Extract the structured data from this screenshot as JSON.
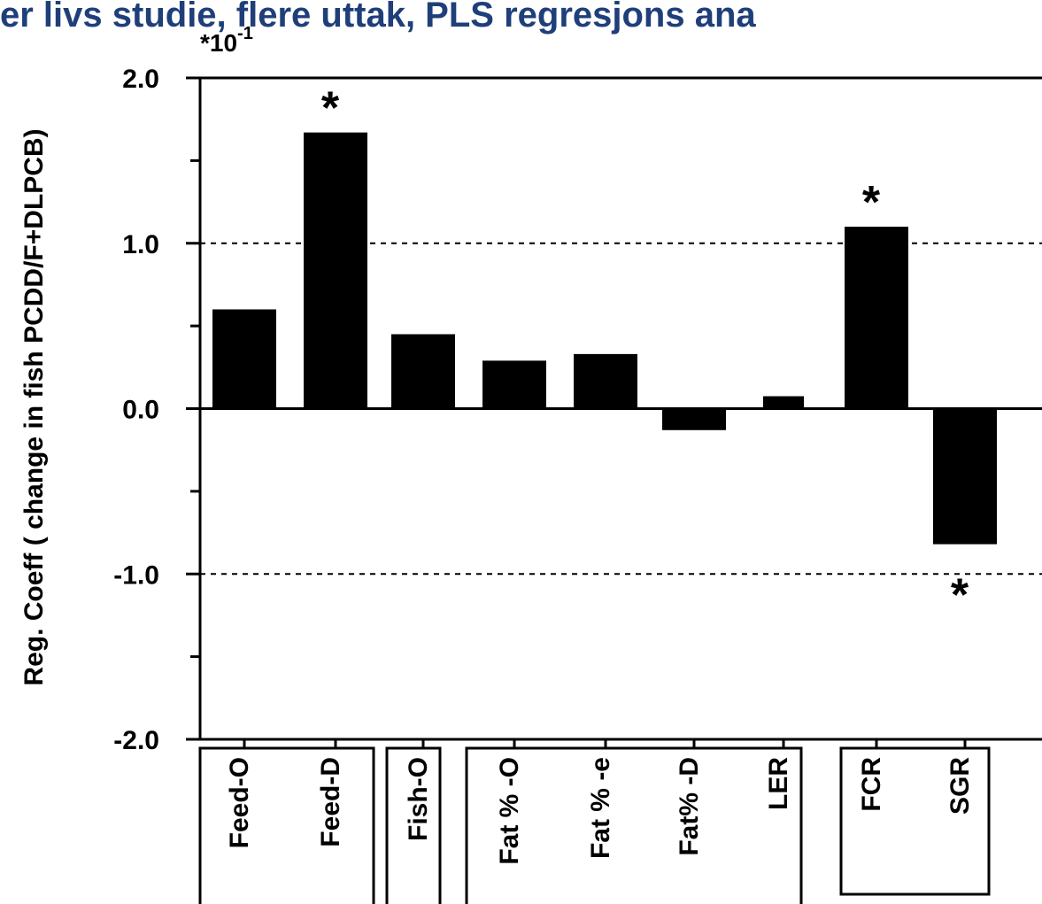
{
  "chart_data": {
    "type": "bar",
    "title": "er livs studie, flere uttak, PLS regresjons ana",
    "scale_label": "*10",
    "scale_exponent": "-1",
    "y_label": "Reg. Coeff ( change in fish PCDD/F+DLPCB)",
    "categories": [
      "Feed-O",
      "Feed-D",
      "Fish-O",
      "Fat % -O",
      "Fat % -e",
      "Fat% -D",
      "LER",
      "FCR",
      "SGR"
    ],
    "values": [
      0.6,
      1.67,
      0.45,
      0.29,
      0.33,
      -0.13,
      0.075,
      1.1,
      -0.82
    ],
    "markers": [
      null,
      "*",
      null,
      null,
      null,
      null,
      null,
      "*",
      "*"
    ],
    "color": "#000000",
    "ylim": [
      -2,
      2
    ],
    "yticks": [
      {
        "value": -2,
        "label": "-2.0"
      },
      {
        "value": -1,
        "label": "-1.0"
      },
      {
        "value": 0,
        "label": "0.0"
      },
      {
        "value": 1,
        "label": "1.0"
      },
      {
        "value": 2,
        "label": "2.0"
      }
    ],
    "yminor": [
      -1.5,
      -0.5,
      0.5,
      1.5
    ],
    "dashed_grid": [
      -1,
      1
    ]
  }
}
